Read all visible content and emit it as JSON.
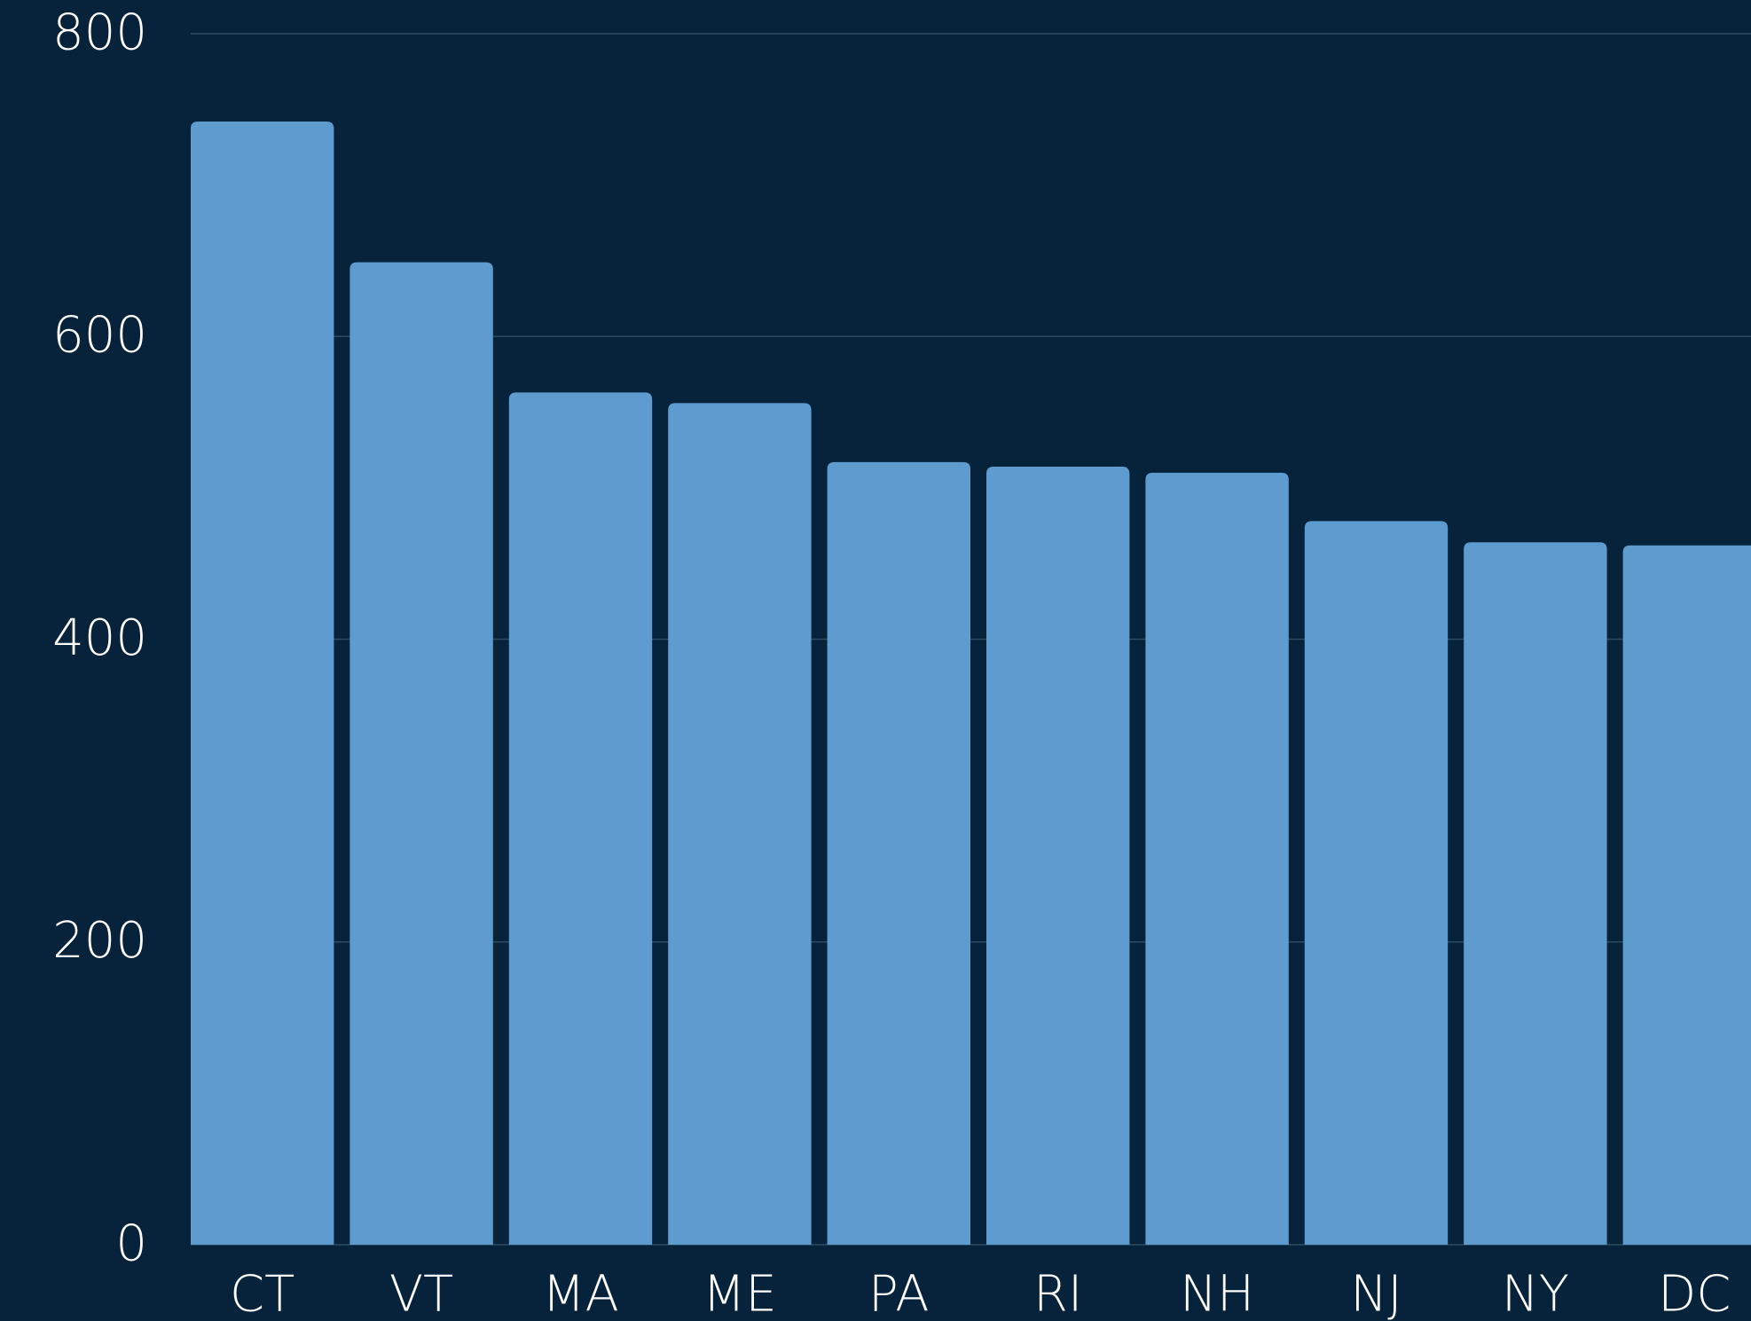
{
  "chart_data": {
    "type": "bar",
    "categories": [
      "CT",
      "VT",
      "MA",
      "ME",
      "PA",
      "RI",
      "NH",
      "NJ",
      "NY",
      "DC"
    ],
    "values": [
      742,
      649,
      563,
      556,
      517,
      514,
      510,
      478,
      464,
      462
    ],
    "color": "#5e9ccf",
    "ylim": [
      0,
      800
    ],
    "yticks": [
      0,
      200,
      400,
      600,
      800
    ],
    "grid": true
  }
}
